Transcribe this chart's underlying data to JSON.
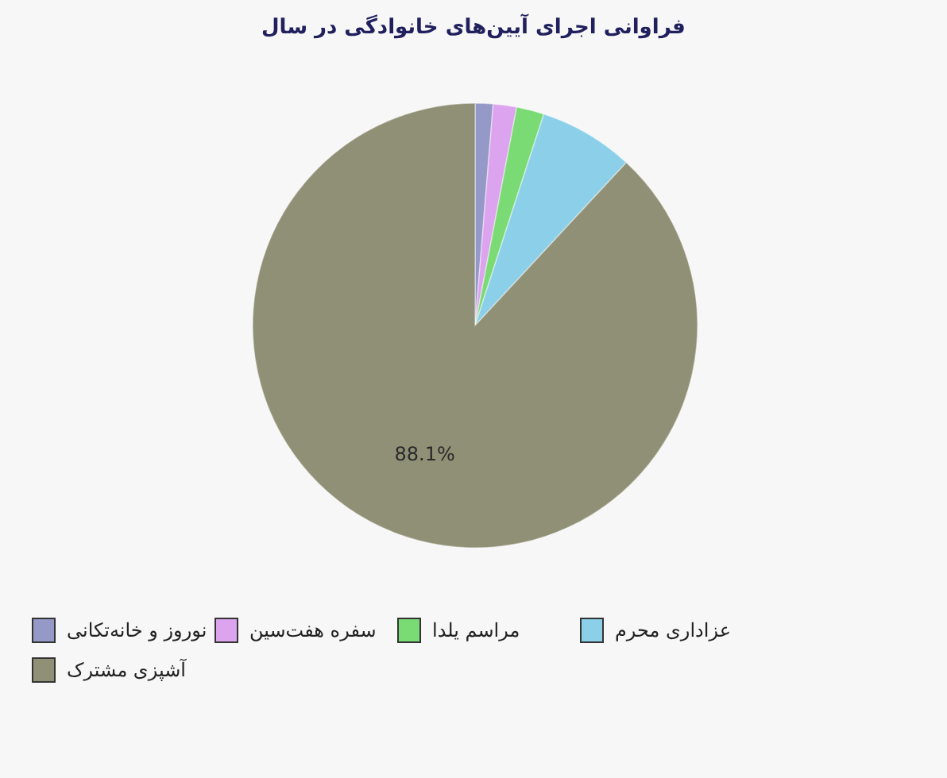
{
  "chart_data": {
    "type": "pie",
    "title": "فراوانی اجرای آیین‌های خانوادگی در سال",
    "categories": [
      "نوروز و خانه‌تکانی",
      "سفره هفت‌سین",
      "مراسم یلدا",
      "عزاداری محرم",
      "آشپزی مشترک"
    ],
    "values": [
      1.3,
      1.7,
      2.0,
      6.9,
      88.1
    ],
    "colors": [
      "#9599c8",
      "#dca4ee",
      "#7ada74",
      "#8ccfe8",
      "#8f9075"
    ],
    "value_labels": [
      null,
      null,
      null,
      null,
      "88.1%"
    ],
    "legend": "bottom"
  }
}
